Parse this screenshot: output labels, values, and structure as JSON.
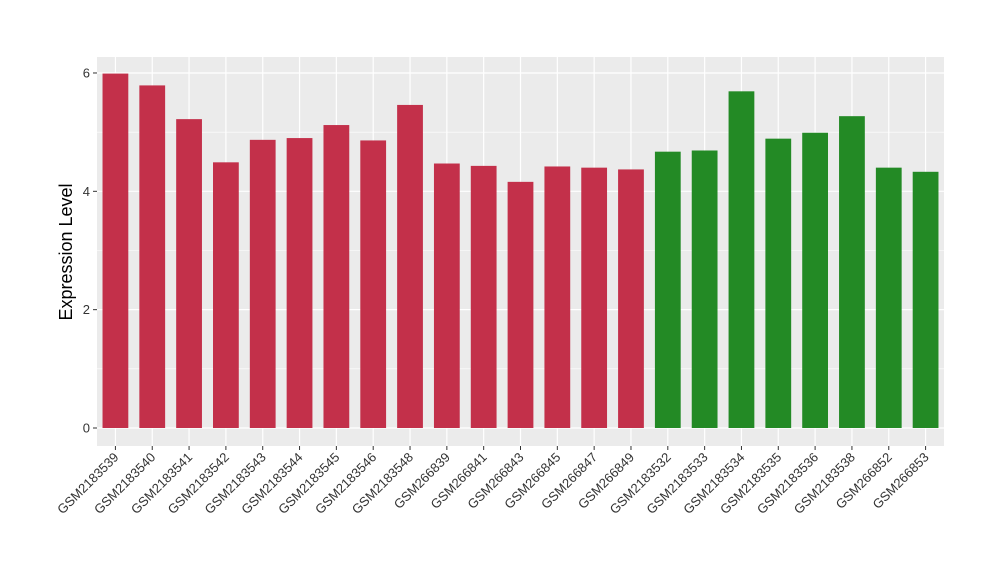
{
  "chart_data": {
    "type": "bar",
    "title": "",
    "xlabel": "",
    "ylabel": "Expression Level",
    "ylim": [
      0,
      6.25
    ],
    "yticks": [
      0,
      2,
      4,
      6
    ],
    "grid": true,
    "colors": {
      "group1": "#c3304a",
      "group2": "#238a25",
      "panel": "#ebebeb",
      "grid": "#ffffff"
    },
    "categories": [
      "GSM2183539",
      "GSM2183540",
      "GSM2183541",
      "GSM2183542",
      "GSM2183543",
      "GSM2183544",
      "GSM2183545",
      "GSM2183546",
      "GSM2183548",
      "GSM266839",
      "GSM266841",
      "GSM266843",
      "GSM266845",
      "GSM266847",
      "GSM266849",
      "GSM2183532",
      "GSM2183533",
      "GSM2183534",
      "GSM2183535",
      "GSM2183536",
      "GSM2183538",
      "GSM266852",
      "GSM266853"
    ],
    "values": [
      5.99,
      5.79,
      5.22,
      4.49,
      4.87,
      4.9,
      5.12,
      4.86,
      5.46,
      4.47,
      4.43,
      4.16,
      4.42,
      4.4,
      4.37,
      4.67,
      4.69,
      5.69,
      4.89,
      4.99,
      5.27,
      4.4,
      4.33
    ],
    "groups": [
      "group1",
      "group1",
      "group1",
      "group1",
      "group1",
      "group1",
      "group1",
      "group1",
      "group1",
      "group1",
      "group1",
      "group1",
      "group1",
      "group1",
      "group1",
      "group2",
      "group2",
      "group2",
      "group2",
      "group2",
      "group2",
      "group2",
      "group2"
    ]
  }
}
